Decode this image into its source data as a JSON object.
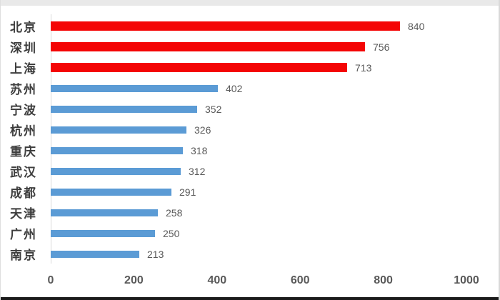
{
  "chart_data": {
    "type": "bar",
    "orientation": "horizontal",
    "title": "",
    "xlabel": "",
    "ylabel": "",
    "xlim": [
      0,
      1000
    ],
    "x_ticks": [
      0,
      200,
      400,
      600,
      800,
      1000
    ],
    "gridlines": false,
    "legend_position": "none",
    "colors": {
      "red": "#F40505",
      "blue": "#5B9BD5"
    },
    "rows": [
      {
        "city": "北京",
        "value": 840,
        "color": "red"
      },
      {
        "city": "深圳",
        "value": 756,
        "color": "red"
      },
      {
        "city": "上海",
        "value": 713,
        "color": "red"
      },
      {
        "city": "苏州",
        "value": 402,
        "color": "blue"
      },
      {
        "city": "宁波",
        "value": 352,
        "color": "blue"
      },
      {
        "city": "杭州",
        "value": 326,
        "color": "blue"
      },
      {
        "city": "重庆",
        "value": 318,
        "color": "blue"
      },
      {
        "city": "武汉",
        "value": 312,
        "color": "blue"
      },
      {
        "city": "成都",
        "value": 291,
        "color": "blue"
      },
      {
        "city": "天津",
        "value": 258,
        "color": "blue"
      },
      {
        "city": "广州",
        "value": 250,
        "color": "blue"
      },
      {
        "city": "南京",
        "value": 213,
        "color": "blue"
      }
    ]
  }
}
